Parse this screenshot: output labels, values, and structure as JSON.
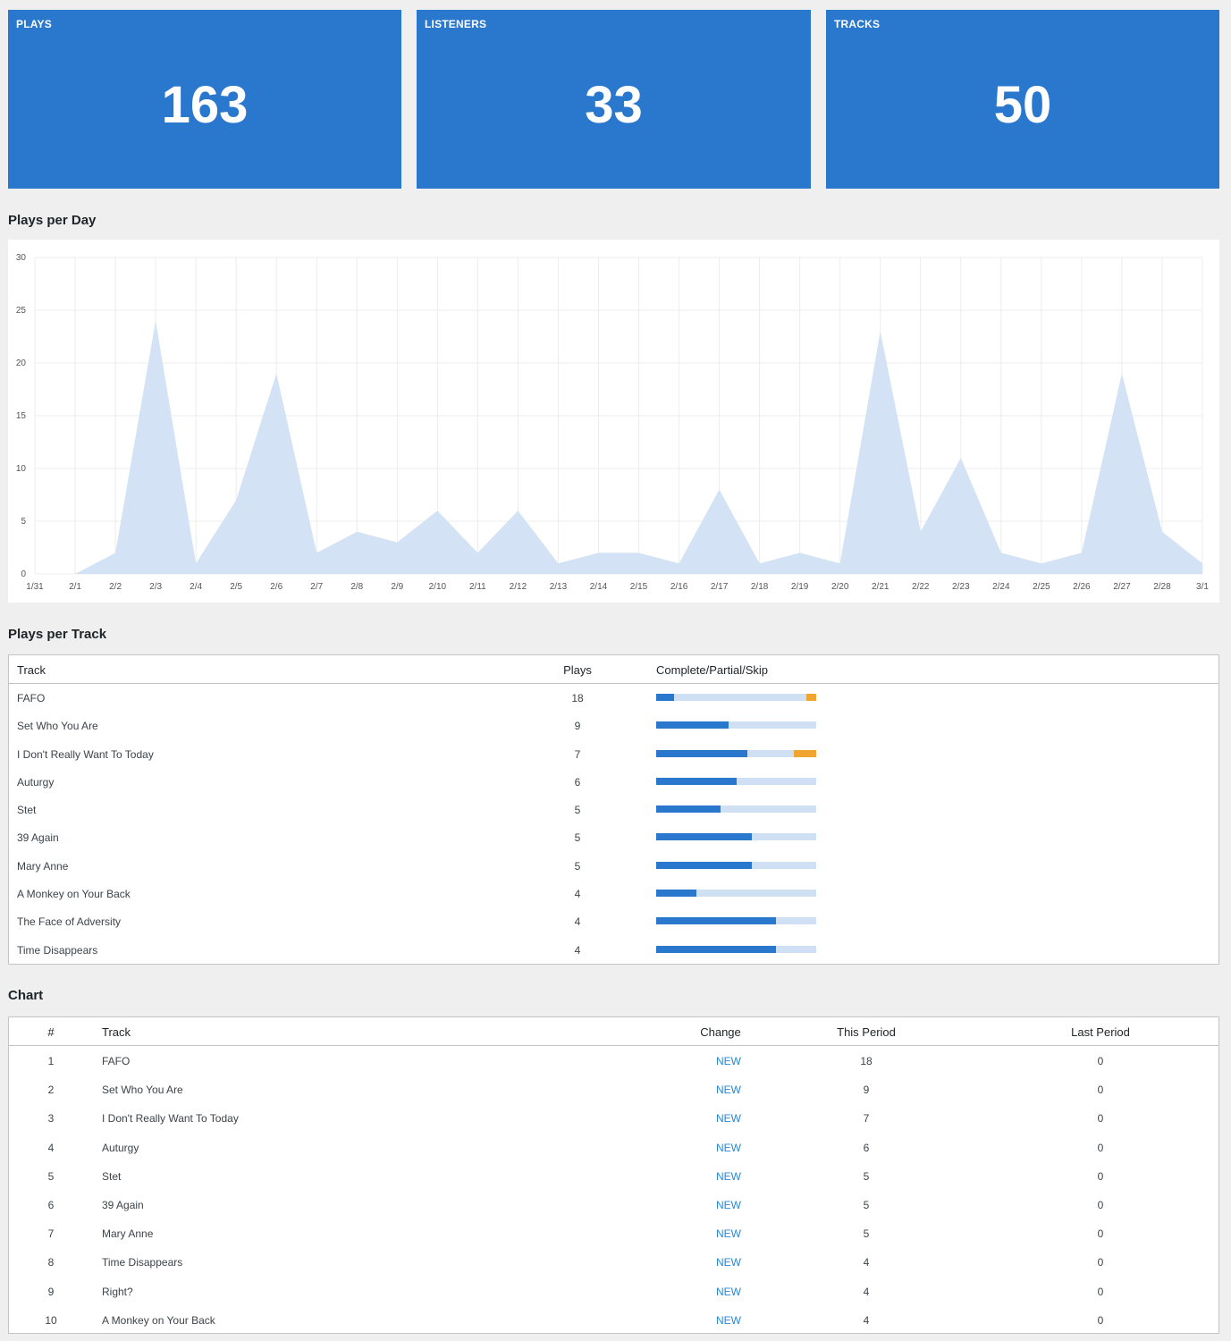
{
  "stats": [
    {
      "label": "PLAYS",
      "value": "163"
    },
    {
      "label": "LISTENERS",
      "value": "33"
    },
    {
      "label": "TRACKS",
      "value": "50"
    }
  ],
  "plays_per_day": {
    "title": "Plays per Day"
  },
  "chart_data": {
    "type": "area",
    "title": "",
    "xlabel": "",
    "ylabel": "",
    "x": [
      "1/31",
      "2/1",
      "2/2",
      "2/3",
      "2/4",
      "2/5",
      "2/6",
      "2/7",
      "2/8",
      "2/9",
      "2/10",
      "2/11",
      "2/12",
      "2/13",
      "2/14",
      "2/15",
      "2/16",
      "2/17",
      "2/18",
      "2/19",
      "2/20",
      "2/21",
      "2/22",
      "2/23",
      "2/24",
      "2/25",
      "2/26",
      "2/27",
      "2/28",
      "3/1"
    ],
    "values": [
      null,
      0,
      2,
      24,
      1,
      7,
      19,
      2,
      4,
      3,
      6,
      2,
      6,
      1,
      2,
      2,
      1,
      8,
      1,
      2,
      1,
      23,
      4,
      11,
      2,
      1,
      2,
      19,
      4,
      1
    ],
    "ylim": [
      0,
      30
    ],
    "yticks": [
      0,
      5,
      10,
      15,
      20,
      25,
      30
    ],
    "grid": true,
    "fill_color": "#d3e2f5"
  },
  "plays_per_track": {
    "title": "Plays per Track",
    "headers": {
      "track": "Track",
      "plays": "Plays",
      "ratio": "Complete/Partial/Skip"
    },
    "rows": [
      {
        "track": "FAFO",
        "plays": "18",
        "complete": 0.11,
        "skip": 0.06
      },
      {
        "track": "Set Who You Are",
        "plays": "9",
        "complete": 0.45,
        "skip": 0
      },
      {
        "track": "I Don't Really Want To Today",
        "plays": "7",
        "complete": 0.57,
        "skip": 0.14
      },
      {
        "track": "Auturgy",
        "plays": "6",
        "complete": 0.5,
        "skip": 0
      },
      {
        "track": "Stet",
        "plays": "5",
        "complete": 0.4,
        "skip": 0
      },
      {
        "track": "39 Again",
        "plays": "5",
        "complete": 0.6,
        "skip": 0
      },
      {
        "track": "Mary Anne",
        "plays": "5",
        "complete": 0.6,
        "skip": 0
      },
      {
        "track": "A Monkey on Your Back",
        "plays": "4",
        "complete": 0.25,
        "skip": 0
      },
      {
        "track": "The Face of Adversity",
        "plays": "4",
        "complete": 0.75,
        "skip": 0
      },
      {
        "track": "Time Disappears",
        "plays": "4",
        "complete": 0.75,
        "skip": 0
      }
    ],
    "colors": {
      "complete": "#2a77ce",
      "partial": "#cfe0f4",
      "skip": "#f0a531"
    }
  },
  "chart_table": {
    "title": "Chart",
    "headers": {
      "rank": "#",
      "track": "Track",
      "change": "Change",
      "this_period": "This Period",
      "last_period": "Last Period"
    },
    "rows": [
      {
        "rank": "1",
        "track": "FAFO",
        "change": "NEW",
        "this_period": "18",
        "last_period": "0"
      },
      {
        "rank": "2",
        "track": "Set Who You Are",
        "change": "NEW",
        "this_period": "9",
        "last_period": "0"
      },
      {
        "rank": "3",
        "track": "I Don't Really Want To Today",
        "change": "NEW",
        "this_period": "7",
        "last_period": "0"
      },
      {
        "rank": "4",
        "track": "Auturgy",
        "change": "NEW",
        "this_period": "6",
        "last_period": "0"
      },
      {
        "rank": "5",
        "track": "Stet",
        "change": "NEW",
        "this_period": "5",
        "last_period": "0"
      },
      {
        "rank": "6",
        "track": "39 Again",
        "change": "NEW",
        "this_period": "5",
        "last_period": "0"
      },
      {
        "rank": "7",
        "track": "Mary Anne",
        "change": "NEW",
        "this_period": "5",
        "last_period": "0"
      },
      {
        "rank": "8",
        "track": "Time Disappears",
        "change": "NEW",
        "this_period": "4",
        "last_period": "0"
      },
      {
        "rank": "9",
        "track": "Right?",
        "change": "NEW",
        "this_period": "4",
        "last_period": "0"
      },
      {
        "rank": "10",
        "track": "A Monkey on Your Back",
        "change": "NEW",
        "this_period": "4",
        "last_period": "0"
      }
    ]
  }
}
